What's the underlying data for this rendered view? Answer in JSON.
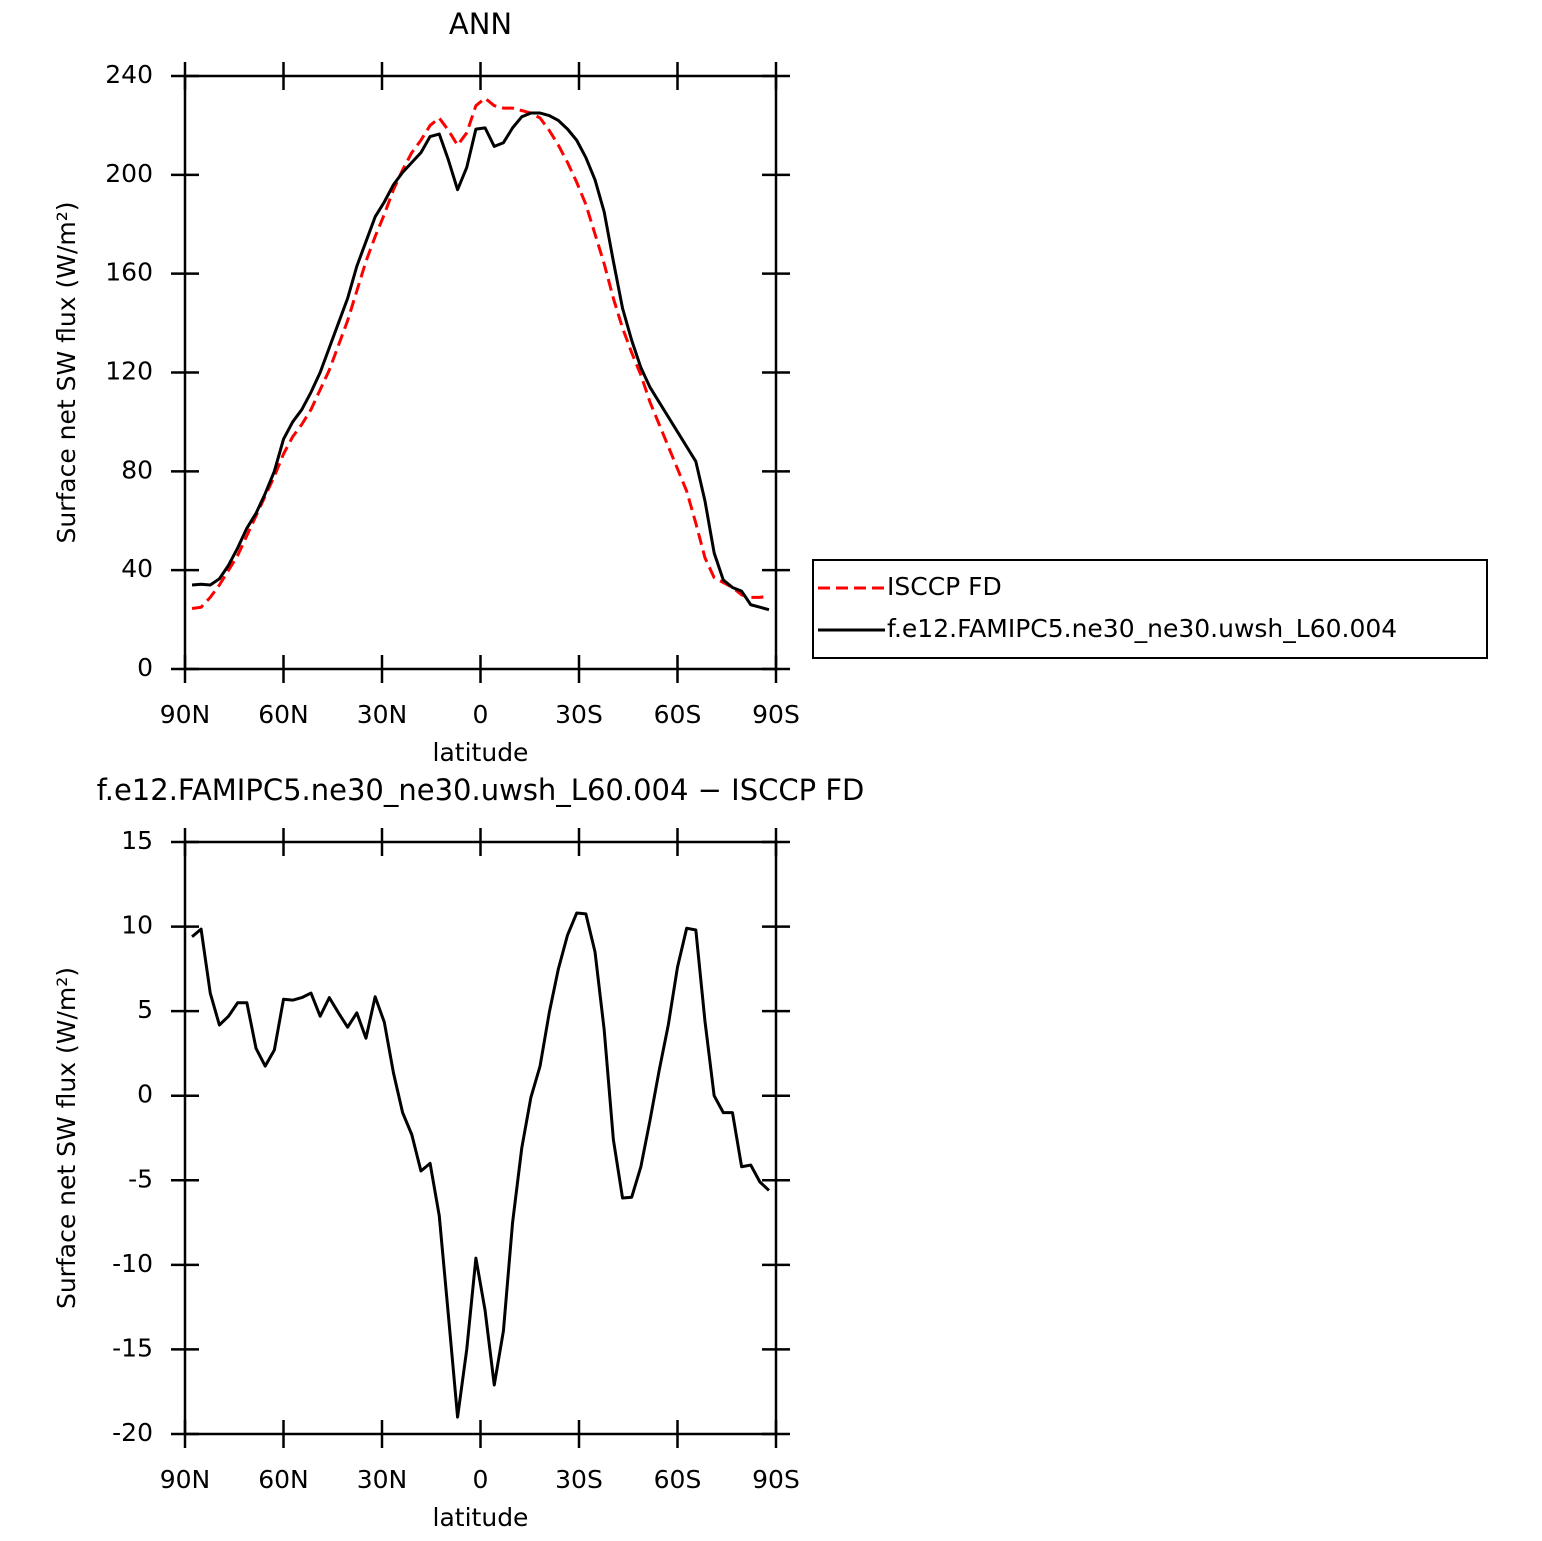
{
  "chart_data": [
    {
      "type": "line",
      "title": "ANN",
      "xlabel": "latitude",
      "ylabel": "Surface net SW flux (W/m²)",
      "x": [
        87.86,
        85.1,
        82.31,
        79.53,
        76.74,
        73.95,
        71.16,
        68.37,
        65.58,
        62.79,
        60.0,
        57.21,
        54.42,
        51.63,
        48.84,
        46.05,
        43.26,
        40.47,
        37.67,
        34.88,
        32.09,
        29.3,
        26.51,
        23.72,
        20.93,
        18.14,
        15.35,
        12.56,
        9.77,
        6.98,
        4.19,
        1.4,
        -1.4,
        -4.19,
        -6.98,
        -9.77,
        -12.56,
        -15.35,
        -18.14,
        -20.93,
        -23.72,
        -26.51,
        -29.3,
        -32.09,
        -34.88,
        -37.67,
        -40.47,
        -43.26,
        -46.05,
        -48.84,
        -51.63,
        -54.42,
        -57.21,
        -60.0,
        -62.79,
        -65.58,
        -68.37,
        -71.16,
        -73.95,
        -76.74,
        -79.53,
        -82.31,
        -85.1,
        -87.86
      ],
      "xlim": [
        90,
        -90
      ],
      "xticks": [
        {
          "value": 90,
          "label": "90N"
        },
        {
          "value": 60,
          "label": "60N"
        },
        {
          "value": 30,
          "label": "30N"
        },
        0,
        {
          "value": -30,
          "label": "30S"
        },
        {
          "value": -60,
          "label": "60S"
        },
        {
          "value": -90,
          "label": "90S"
        }
      ],
      "ylim": [
        0,
        240
      ],
      "yticks": [
        0,
        40,
        80,
        120,
        160,
        200,
        240
      ],
      "legend": "right",
      "series": [
        {
          "name": "ISCCP FD",
          "color": "#ff0000",
          "dash": "dashed",
          "values": [
            24.5,
            25,
            29,
            34,
            40,
            46,
            54,
            62,
            70,
            78,
            87,
            94,
            99,
            105,
            113,
            121,
            131,
            141,
            153,
            165,
            175,
            184,
            194,
            202,
            209,
            214,
            220,
            223,
            218,
            212,
            217,
            228,
            231,
            228,
            227,
            227,
            226,
            225,
            223,
            218,
            212,
            205,
            197,
            188,
            176,
            164,
            150,
            138,
            128,
            119,
            108,
            99,
            90,
            81,
            72,
            59,
            45,
            37,
            35,
            33,
            30,
            29,
            29,
            29.5
          ]
        },
        {
          "name": "f.e12.FAMIPC5.ne30_ne30.uwsh_L60.004",
          "color": "#000000",
          "dash": "solid",
          "values": [
            34,
            34.3,
            34,
            36.5,
            42,
            49,
            57,
            63,
            71,
            80,
            93,
            100,
            105,
            112,
            120,
            130,
            140,
            150,
            163,
            173,
            183,
            189,
            196,
            201,
            205,
            209,
            215.5,
            216.5,
            206,
            194,
            203,
            218.5,
            219,
            211.5,
            213,
            219,
            223.5,
            225,
            225,
            224,
            222,
            218.5,
            214,
            207,
            198,
            185,
            165,
            146,
            133,
            122,
            114,
            108,
            102,
            96,
            90,
            84,
            68,
            47,
            36,
            33,
            31.5,
            26,
            25,
            24
          ]
        }
      ]
    },
    {
      "type": "line",
      "title": "f.e12.FAMIPC5.ne30_ne30.uwsh_L60.004 − ISCCP FD",
      "xlabel": "latitude",
      "ylabel": "Surface net SW flux (W/m²)",
      "x": [
        87.86,
        85.1,
        82.31,
        79.53,
        76.74,
        73.95,
        71.16,
        68.37,
        65.58,
        62.79,
        60.0,
        57.21,
        54.42,
        51.63,
        48.84,
        46.05,
        43.26,
        40.47,
        37.67,
        34.88,
        32.09,
        29.3,
        26.51,
        23.72,
        20.93,
        18.14,
        15.35,
        12.56,
        9.77,
        6.98,
        4.19,
        1.4,
        -1.4,
        -4.19,
        -6.98,
        -9.77,
        -12.56,
        -15.35,
        -18.14,
        -20.93,
        -23.72,
        -26.51,
        -29.3,
        -32.09,
        -34.88,
        -37.67,
        -40.47,
        -43.26,
        -46.05,
        -48.84,
        -51.63,
        -54.42,
        -57.21,
        -60.0,
        -62.79,
        -65.58,
        -68.37,
        -71.16,
        -73.95,
        -76.74,
        -79.53,
        -82.31,
        -85.1,
        -87.86
      ],
      "xlim": [
        90,
        -90
      ],
      "xticks": [
        {
          "value": 90,
          "label": "90N"
        },
        {
          "value": 60,
          "label": "60N"
        },
        {
          "value": 30,
          "label": "30N"
        },
        0,
        {
          "value": -30,
          "label": "30S"
        },
        {
          "value": -60,
          "label": "60S"
        },
        {
          "value": -90,
          "label": "90S"
        }
      ],
      "ylim": [
        -20,
        15
      ],
      "yticks": [
        -20,
        -15,
        -10,
        -5,
        0,
        5,
        10,
        15
      ],
      "color": "#000000",
      "values": [
        9.4,
        9.85,
        6.07,
        4.18,
        4.7,
        5.5,
        5.5,
        2.8,
        1.75,
        2.7,
        5.7,
        5.65,
        5.8,
        6.07,
        4.7,
        5.8,
        4.9,
        4.05,
        4.9,
        3.4,
        5.85,
        4.35,
        1.35,
        -1.0,
        -2.3,
        -4.45,
        -4.0,
        -7.1,
        -13.0,
        -19.0,
        -15.0,
        -9.6,
        -12.7,
        -17.1,
        -13.9,
        -7.5,
        -3.1,
        -0.1,
        1.75,
        4.9,
        7.5,
        9.5,
        10.8,
        10.75,
        8.5,
        3.9,
        -2.6,
        -6.05,
        -6.0,
        -4.2,
        -1.45,
        1.5,
        4.2,
        7.6,
        9.9,
        9.8,
        4.4,
        0,
        -1.0,
        -1.0,
        -4.2,
        -4.1,
        -5.1,
        -5.6
      ]
    }
  ]
}
